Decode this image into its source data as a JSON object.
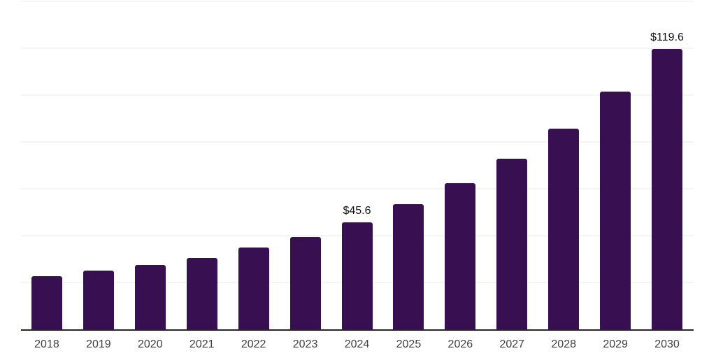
{
  "chart_data": {
    "type": "bar",
    "title": "",
    "xlabel": "",
    "ylabel": "",
    "categories": [
      "2018",
      "2019",
      "2020",
      "2021",
      "2022",
      "2023",
      "2024",
      "2025",
      "2026",
      "2027",
      "2028",
      "2029",
      "2030"
    ],
    "values": [
      22.7,
      25.0,
      27.5,
      30.5,
      34.9,
      39.4,
      45.6,
      53.3,
      62.3,
      72.7,
      85.8,
      101.5,
      119.6
    ],
    "data_labels": [
      {
        "category": "2024",
        "text": "$45.6"
      },
      {
        "category": "2030",
        "text": "$119.6"
      }
    ],
    "ylim": [
      0,
      140
    ],
    "gridline_interval": 20,
    "grid": "horizontal-only",
    "legend": "none",
    "y_axis_tick_labels": "none",
    "colors": {
      "bar": "#381052",
      "axis_line": "#262626",
      "gridline": "#f4f4f4",
      "x_tick_label": "#404040",
      "data_label": "#111111",
      "background": "#ffffff"
    }
  }
}
